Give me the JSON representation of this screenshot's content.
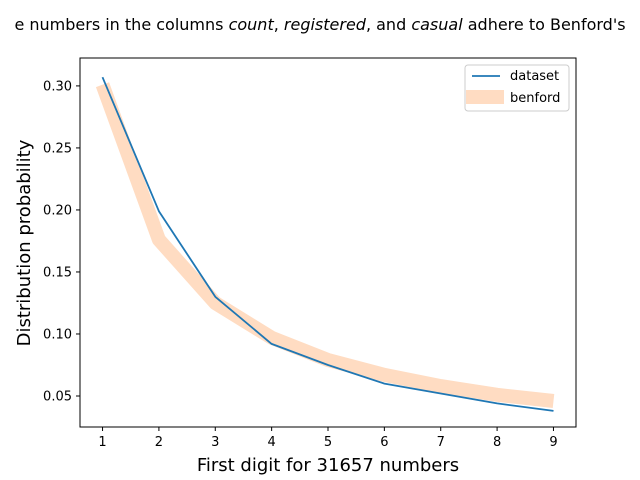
{
  "chart_data": {
    "type": "line",
    "title": {
      "prefix": "e numbers in the columns ",
      "em1": "count",
      "sep1": ", ",
      "em2": "registered",
      "sep2": ", and ",
      "em3": "casual",
      "suffix": " adhere to Benford's"
    },
    "xlabel": "First digit for 31657 numbers",
    "ylabel": "Distribution probability",
    "xlim": [
      0.6,
      9.4
    ],
    "ylim": [
      0.025,
      0.3225
    ],
    "x_ticks": [
      1,
      2,
      3,
      4,
      5,
      6,
      7,
      8,
      9
    ],
    "x_tick_labels": [
      "1",
      "2",
      "3",
      "4",
      "5",
      "6",
      "7",
      "8",
      "9"
    ],
    "y_ticks": [
      0.05,
      0.1,
      0.15,
      0.2,
      0.25,
      0.3
    ],
    "y_tick_labels": [
      "0.05",
      "0.10",
      "0.15",
      "0.20",
      "0.25",
      "0.30"
    ],
    "grid": false,
    "legend_position": "top-right",
    "series": [
      {
        "name": "dataset",
        "color": "#1f77b4",
        "x": [
          1,
          2,
          3,
          4,
          5,
          6,
          7,
          8,
          9
        ],
        "values": [
          0.307,
          0.199,
          0.13,
          0.092,
          0.075,
          0.06,
          0.052,
          0.044,
          0.038
        ]
      },
      {
        "name": "benford",
        "color": "#ffdcc2",
        "x": [
          1,
          2,
          3,
          4,
          5,
          6,
          7,
          8,
          9
        ],
        "values": [
          0.301,
          0.176,
          0.125,
          0.097,
          0.079,
          0.067,
          0.058,
          0.051,
          0.046
        ]
      }
    ]
  }
}
